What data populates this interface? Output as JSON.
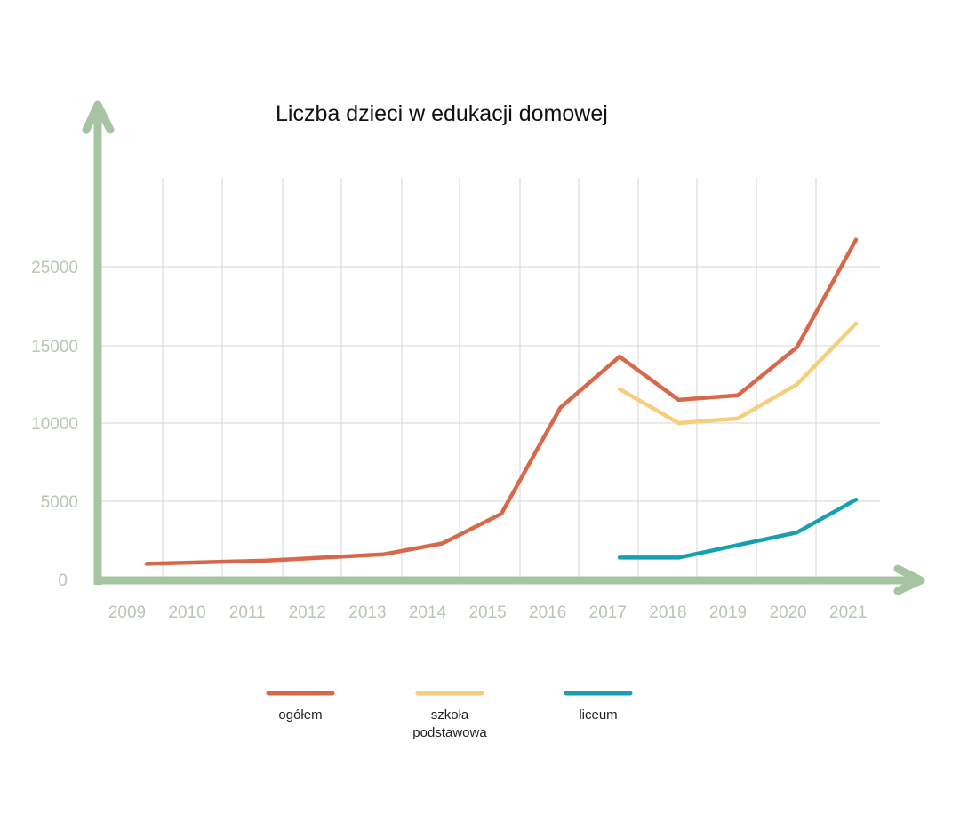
{
  "chart_data": {
    "type": "line",
    "title": "Liczba dzieci w edukacji domowej",
    "xlabel": "",
    "ylabel": "",
    "x": [
      2009,
      2010,
      2011,
      2012,
      2013,
      2014,
      2015,
      2016,
      2017,
      2018,
      2019,
      2020,
      2021
    ],
    "x_tick_labels": [
      "2009",
      "2010",
      "2011",
      "2012",
      "2013",
      "2014",
      "2015",
      "2016",
      "2017",
      "2018",
      "2019",
      "2020",
      "2021"
    ],
    "y_tick_labels": [
      "0",
      "5000",
      "10000",
      "15000",
      "25000"
    ],
    "y_tick_values": [
      0,
      5000,
      10000,
      15000,
      25000
    ],
    "grid": true,
    "legend_position": "bottom",
    "series": [
      {
        "name": "ogółem",
        "color": "#d8684a",
        "values": [
          1000,
          1100,
          1200,
          1400,
          1600,
          2300,
          4200,
          11000,
          14300,
          11500,
          11800,
          14900,
          28400
        ]
      },
      {
        "name": "szkoła podstawowa",
        "color": "#f6cf7c",
        "values": [
          null,
          null,
          null,
          null,
          null,
          null,
          null,
          null,
          12200,
          10000,
          10300,
          12500,
          17800
        ]
      },
      {
        "name": "liceum",
        "color": "#17a0b2",
        "values": [
          null,
          null,
          null,
          null,
          null,
          null,
          null,
          null,
          1400,
          1400,
          2200,
          3000,
          5100
        ]
      }
    ],
    "legend_labels": [
      [
        "ogółem"
      ],
      [
        "szkoła",
        "podstawowa"
      ],
      [
        "liceum"
      ]
    ],
    "axis_color": "#a7c4a2",
    "grid_color": "#d6d6d6"
  }
}
